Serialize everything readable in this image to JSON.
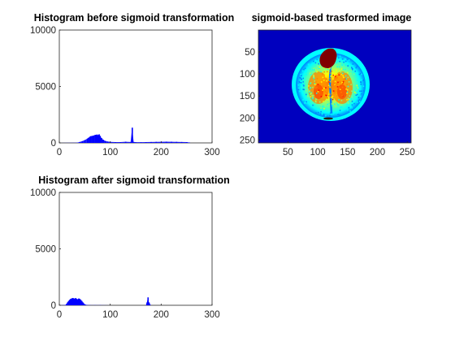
{
  "figure": {
    "background": "#ffffff"
  },
  "chart_data": [
    {
      "type": "bar",
      "title": "Histogram before sigmoid transformation",
      "xlabel": "",
      "ylabel": "",
      "xlim": [
        0,
        300
      ],
      "ylim": [
        0,
        10000
      ],
      "xticks": [
        0,
        100,
        200,
        300
      ],
      "yticks": [
        0,
        5000,
        10000
      ],
      "color": "#0000ff",
      "x": [
        0,
        35,
        40,
        45,
        50,
        55,
        57,
        60,
        62,
        65,
        67,
        70,
        72,
        74,
        76,
        78,
        80,
        83,
        86,
        90,
        95,
        100,
        110,
        120,
        130,
        140,
        143,
        146,
        150,
        160,
        170,
        180,
        190,
        200,
        210,
        220,
        230,
        240,
        250,
        255,
        256
      ],
      "values": [
        0,
        20,
        80,
        150,
        250,
        380,
        450,
        550,
        600,
        620,
        650,
        700,
        720,
        740,
        680,
        760,
        620,
        420,
        280,
        180,
        120,
        90,
        70,
        70,
        100,
        80,
        1350,
        80,
        60,
        60,
        70,
        80,
        90,
        100,
        110,
        100,
        90,
        80,
        70,
        40,
        0
      ]
    },
    {
      "type": "heatmap",
      "title": "sigmoid-based trasformed image",
      "xlim": [
        0.5,
        256.5
      ],
      "ylim": [
        0.5,
        256.5
      ],
      "xticks": [
        50,
        100,
        150,
        200,
        250
      ],
      "yticks": [
        50,
        100,
        150,
        200,
        250
      ],
      "colormap": "jet",
      "colormap_colors": [
        "#00008f",
        "#0000ff",
        "#0080ff",
        "#00ffff",
        "#80ff80",
        "#ffff00",
        "#ff8000",
        "#ff0000",
        "#800000"
      ],
      "background_value_color": "#0000bf"
    },
    {
      "type": "bar",
      "title": "Histogram after sigmoid transformation",
      "xlabel": "",
      "ylabel": "",
      "xlim": [
        0,
        300
      ],
      "ylim": [
        0,
        10000
      ],
      "xticks": [
        0,
        100,
        200,
        300
      ],
      "yticks": [
        0,
        5000,
        10000
      ],
      "color": "#0000ff",
      "x": [
        0,
        12,
        14,
        16,
        18,
        20,
        22,
        24,
        26,
        28,
        30,
        32,
        34,
        36,
        38,
        40,
        42,
        44,
        46,
        48,
        50,
        55,
        60,
        70,
        80,
        100,
        120,
        140,
        160,
        170,
        172,
        174,
        176,
        180,
        200,
        255
      ],
      "values": [
        0,
        30,
        120,
        260,
        380,
        480,
        560,
        600,
        640,
        620,
        580,
        640,
        560,
        520,
        600,
        560,
        480,
        380,
        260,
        160,
        80,
        20,
        10,
        10,
        10,
        0,
        0,
        0,
        0,
        0,
        250,
        700,
        250,
        0,
        0,
        0
      ]
    }
  ]
}
